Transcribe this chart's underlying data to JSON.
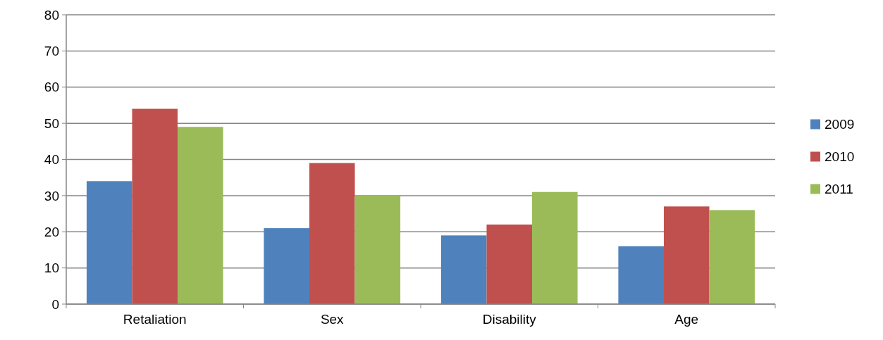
{
  "chart_data": {
    "type": "bar",
    "categories": [
      "Retaliation",
      "Sex",
      "Disability",
      "Age"
    ],
    "series": [
      {
        "name": "2009",
        "color": "#4f81bd",
        "values": [
          34,
          21,
          19,
          16
        ]
      },
      {
        "name": "2010",
        "color": "#c0504d",
        "values": [
          54,
          39,
          22,
          27
        ]
      },
      {
        "name": "2011",
        "color": "#9bbb59",
        "values": [
          49,
          30,
          31,
          26
        ]
      }
    ],
    "ylim": [
      0,
      80
    ],
    "yticks": [
      0,
      10,
      20,
      30,
      40,
      50,
      60,
      70,
      80
    ],
    "grid": "y",
    "legend": "right"
  }
}
